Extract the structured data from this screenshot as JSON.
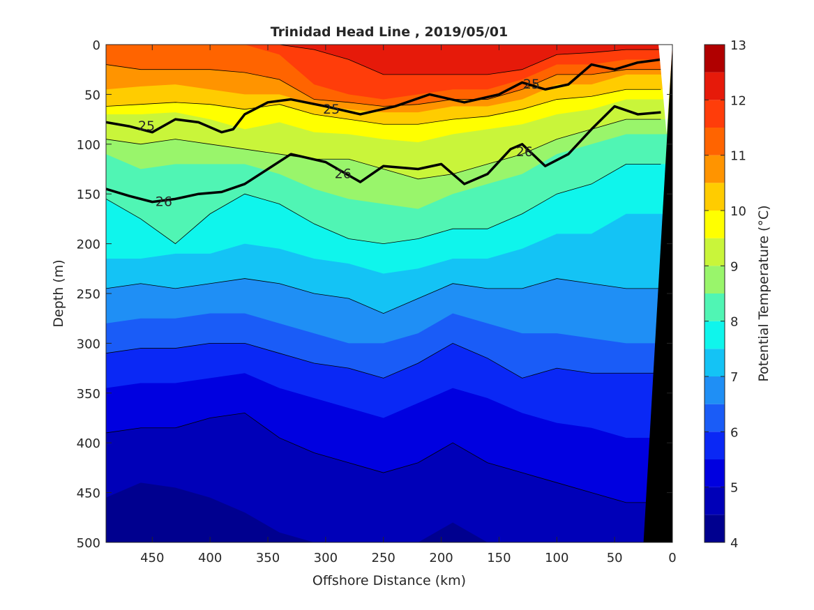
{
  "chart_data": {
    "type": "contour",
    "title": "Trinidad Head Line , 2019/05/01",
    "xlabel": "Offshore Distance (km)",
    "ylabel": "Depth (m)",
    "colorbar_label": "Potential Temperature (°C)",
    "xlim": [
      490,
      0
    ],
    "ylim": [
      0,
      500
    ],
    "x_reversed": true,
    "y_reversed": true,
    "x_ticks": [
      450,
      400,
      350,
      300,
      250,
      200,
      150,
      100,
      50,
      0
    ],
    "y_ticks": [
      0,
      50,
      100,
      150,
      200,
      250,
      300,
      350,
      400,
      450,
      500
    ],
    "colorbar_ticks": [
      4,
      5,
      6,
      7,
      8,
      9,
      10,
      11,
      12,
      13
    ],
    "color_levels": [
      {
        "min": 4.0,
        "max": 4.5,
        "color": "#00008f"
      },
      {
        "min": 4.5,
        "max": 5.0,
        "color": "#0000b8"
      },
      {
        "min": 5.0,
        "max": 5.5,
        "color": "#0000e0"
      },
      {
        "min": 5.5,
        "max": 6.0,
        "color": "#0a28f5"
      },
      {
        "min": 6.0,
        "max": 6.5,
        "color": "#1a5cf7"
      },
      {
        "min": 6.5,
        "max": 7.0,
        "color": "#1f8ff5"
      },
      {
        "min": 7.0,
        "max": 7.5,
        "color": "#14c3f5"
      },
      {
        "min": 7.5,
        "max": 8.0,
        "color": "#0ff5ec"
      },
      {
        "min": 8.0,
        "max": 8.5,
        "color": "#50f5b4"
      },
      {
        "min": 8.5,
        "max": 9.0,
        "color": "#99f56b"
      },
      {
        "min": 9.0,
        "max": 9.5,
        "color": "#c9f53a"
      },
      {
        "min": 9.5,
        "max": 10.0,
        "color": "#ffff00"
      },
      {
        "min": 10.0,
        "max": 10.5,
        "color": "#ffcc00"
      },
      {
        "min": 10.5,
        "max": 11.0,
        "color": "#ff9400"
      },
      {
        "min": 11.0,
        "max": 11.5,
        "color": "#ff6400"
      },
      {
        "min": 11.5,
        "max": 12.0,
        "color": "#ff3d0a"
      },
      {
        "min": 12.0,
        "max": 12.5,
        "color": "#e61a0a"
      },
      {
        "min": 12.5,
        "max": 13.0,
        "color": "#b00000"
      }
    ],
    "temperature_bands": [
      {
        "value": 12.25,
        "depths": [
          0,
          0,
          0,
          0,
          0,
          0,
          5,
          15,
          30,
          30,
          30,
          30,
          25,
          10,
          8,
          5,
          5
        ]
      },
      {
        "value": 11.75,
        "depths": [
          0,
          0,
          0,
          0,
          0,
          10,
          40,
          50,
          55,
          50,
          45,
          45,
          35,
          20,
          20,
          15,
          15
        ]
      },
      {
        "value": 11.25,
        "depths": [
          20,
          25,
          25,
          25,
          28,
          35,
          55,
          58,
          62,
          60,
          55,
          55,
          45,
          30,
          30,
          25,
          25
        ]
      },
      {
        "value": 10.75,
        "depths": [
          45,
          42,
          40,
          45,
          50,
          50,
          60,
          65,
          68,
          68,
          62,
          62,
          55,
          40,
          40,
          30,
          30
        ]
      },
      {
        "value": 10.25,
        "depths": [
          62,
          60,
          58,
          60,
          65,
          60,
          70,
          75,
          80,
          80,
          75,
          72,
          65,
          55,
          52,
          45,
          45
        ]
      },
      {
        "value": 9.75,
        "depths": [
          70,
          70,
          68,
          75,
          85,
          78,
          88,
          90,
          95,
          98,
          90,
          85,
          80,
          70,
          65,
          55,
          55
        ]
      },
      {
        "value": 9.25,
        "depths": [
          95,
          100,
          95,
          100,
          105,
          110,
          115,
          115,
          125,
          135,
          130,
          120,
          110,
          95,
          85,
          75,
          75
        ]
      },
      {
        "value": 8.75,
        "depths": [
          110,
          125,
          120,
          120,
          120,
          130,
          145,
          155,
          160,
          165,
          150,
          140,
          130,
          110,
          100,
          90,
          90
        ]
      },
      {
        "value": 8.25,
        "depths": [
          155,
          175,
          200,
          170,
          150,
          160,
          180,
          195,
          200,
          195,
          185,
          185,
          170,
          150,
          140,
          120,
          120
        ]
      },
      {
        "value": 7.75,
        "depths": [
          215,
          215,
          210,
          210,
          200,
          205,
          215,
          220,
          230,
          225,
          215,
          215,
          205,
          190,
          190,
          170,
          170
        ]
      },
      {
        "value": 7.25,
        "depths": [
          245,
          240,
          245,
          240,
          235,
          240,
          250,
          255,
          270,
          255,
          240,
          245,
          245,
          235,
          240,
          245,
          245
        ]
      },
      {
        "value": 6.75,
        "depths": [
          280,
          275,
          275,
          270,
          270,
          280,
          290,
          300,
          300,
          290,
          270,
          280,
          290,
          290,
          295,
          300,
          300
        ]
      },
      {
        "value": 6.25,
        "depths": [
          310,
          305,
          305,
          300,
          300,
          310,
          320,
          325,
          335,
          320,
          300,
          315,
          335,
          325,
          330,
          330,
          330
        ]
      },
      {
        "value": 5.75,
        "depths": [
          345,
          340,
          340,
          335,
          330,
          345,
          355,
          365,
          375,
          360,
          345,
          355,
          370,
          380,
          385,
          395,
          395
        ]
      },
      {
        "value": 5.25,
        "depths": [
          390,
          385,
          385,
          375,
          370,
          395,
          410,
          420,
          430,
          420,
          400,
          420,
          430,
          440,
          450,
          460,
          460
        ]
      },
      {
        "value": 4.75,
        "depths": [
          455,
          440,
          445,
          455,
          470,
          490,
          500,
          500,
          500,
          500,
          480,
          500,
          500,
          500,
          500,
          500,
          500
        ]
      }
    ],
    "band_x": [
      490,
      460,
      430,
      400,
      370,
      340,
      310,
      280,
      250,
      220,
      190,
      160,
      130,
      100,
      70,
      40,
      10
    ],
    "sigma_contours": [
      {
        "label": "25",
        "x": [
          490,
          470,
          450,
          430,
          410,
          390,
          380,
          370,
          350,
          330,
          300,
          270,
          240,
          210,
          180,
          150,
          130,
          110,
          90,
          70,
          50,
          30,
          10
        ],
        "y": [
          78,
          82,
          88,
          75,
          78,
          88,
          85,
          70,
          58,
          55,
          62,
          70,
          62,
          50,
          58,
          50,
          38,
          45,
          40,
          20,
          25,
          18,
          15
        ]
      },
      {
        "label": "26",
        "x": [
          490,
          470,
          450,
          430,
          410,
          390,
          370,
          350,
          330,
          300,
          270,
          250,
          220,
          200,
          180,
          160,
          140,
          130,
          110,
          90,
          70,
          50,
          30,
          10
        ],
        "y": [
          145,
          152,
          158,
          155,
          150,
          148,
          140,
          125,
          110,
          118,
          138,
          122,
          125,
          120,
          140,
          130,
          105,
          100,
          122,
          110,
          85,
          62,
          70,
          68
        ]
      }
    ],
    "contour_labels": [
      {
        "text": "25",
        "x": 455,
        "y": 82
      },
      {
        "text": "25",
        "x": 295,
        "y": 65
      },
      {
        "text": "25",
        "x": 122,
        "y": 40
      },
      {
        "text": "26",
        "x": 440,
        "y": 158
      },
      {
        "text": "26",
        "x": 285,
        "y": 130
      },
      {
        "text": "26",
        "x": 128,
        "y": 108
      }
    ],
    "bottom_topography": {
      "x": [
        25,
        0,
        0
      ],
      "y": [
        500,
        0,
        500
      ]
    }
  }
}
